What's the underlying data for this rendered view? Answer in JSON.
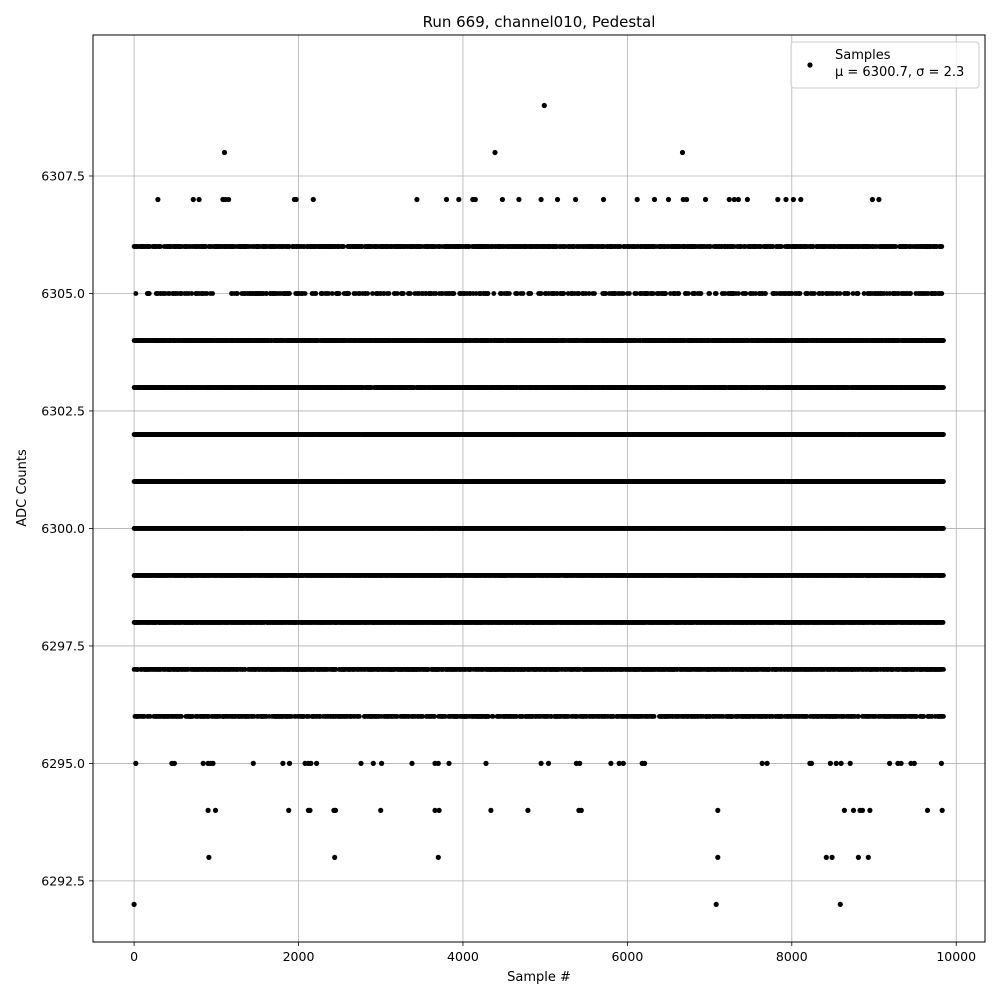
{
  "chart_data": {
    "type": "scatter",
    "title": "Run 669, channel010, Pedestal",
    "xlabel": "Sample #",
    "ylabel": "ADC Counts",
    "xlim": [
      -500,
      10350
    ],
    "ylim": [
      6291.2,
      6310.5
    ],
    "x_ticks": [
      0,
      2000,
      4000,
      6000,
      8000,
      10000
    ],
    "x_tick_labels": [
      "0",
      "2000",
      "4000",
      "6000",
      "8000",
      "10000"
    ],
    "y_ticks": [
      6292.5,
      6295.0,
      6297.5,
      6300.0,
      6302.5,
      6305.0,
      6307.5
    ],
    "y_tick_labels": [
      "6292.5",
      "6295.0",
      "6297.5",
      "6300.0",
      "6302.5",
      "6305.0",
      "6307.5"
    ],
    "grid": true,
    "legend": {
      "placement": "top-right",
      "entries": [
        "Samples",
        "μ = 6300.7, σ = 2.3"
      ]
    },
    "marker_color": "#000000",
    "n_samples": 9850,
    "level_densities": [
      {
        "y": 6300,
        "density": 0.99
      },
      {
        "y": 6301,
        "density": 0.98
      },
      {
        "y": 6302,
        "density": 0.96
      },
      {
        "y": 6299,
        "density": 0.85
      },
      {
        "y": 6298,
        "density": 0.85
      },
      {
        "y": 6303,
        "density": 0.82
      },
      {
        "y": 6304,
        "density": 0.7
      },
      {
        "y": 6297,
        "density": 0.6
      },
      {
        "y": 6306,
        "density": 0.5
      },
      {
        "y": 6296,
        "density": 0.38
      },
      {
        "y": 6305,
        "density": 0.22
      }
    ],
    "points": [
      {
        "x": 0,
        "y": 6292
      },
      {
        "x": 7080,
        "y": 6292
      },
      {
        "x": 8590,
        "y": 6292
      },
      {
        "x": 910,
        "y": 6293
      },
      {
        "x": 2440,
        "y": 6293
      },
      {
        "x": 3700,
        "y": 6293
      },
      {
        "x": 7100,
        "y": 6293
      },
      {
        "x": 8420,
        "y": 6293
      },
      {
        "x": 8490,
        "y": 6293
      },
      {
        "x": 8810,
        "y": 6293
      },
      {
        "x": 8930,
        "y": 6293
      },
      {
        "x": 900,
        "y": 6294
      },
      {
        "x": 990,
        "y": 6294
      },
      {
        "x": 1880,
        "y": 6294
      },
      {
        "x": 2120,
        "y": 6294
      },
      {
        "x": 2140,
        "y": 6294
      },
      {
        "x": 2430,
        "y": 6294
      },
      {
        "x": 2450,
        "y": 6294
      },
      {
        "x": 3000,
        "y": 6294
      },
      {
        "x": 3660,
        "y": 6294
      },
      {
        "x": 3710,
        "y": 6294
      },
      {
        "x": 4340,
        "y": 6294
      },
      {
        "x": 4790,
        "y": 6294
      },
      {
        "x": 5410,
        "y": 6294
      },
      {
        "x": 5440,
        "y": 6294
      },
      {
        "x": 7100,
        "y": 6294
      },
      {
        "x": 8640,
        "y": 6294
      },
      {
        "x": 8750,
        "y": 6294
      },
      {
        "x": 8830,
        "y": 6294
      },
      {
        "x": 8860,
        "y": 6294
      },
      {
        "x": 8950,
        "y": 6294
      },
      {
        "x": 9650,
        "y": 6294
      },
      {
        "x": 9830,
        "y": 6294
      },
      {
        "x": 20,
        "y": 6295
      },
      {
        "x": 460,
        "y": 6295
      },
      {
        "x": 490,
        "y": 6295
      },
      {
        "x": 840,
        "y": 6295
      },
      {
        "x": 900,
        "y": 6295
      },
      {
        "x": 930,
        "y": 6295
      },
      {
        "x": 960,
        "y": 6295
      },
      {
        "x": 1450,
        "y": 6295
      },
      {
        "x": 1810,
        "y": 6295
      },
      {
        "x": 1890,
        "y": 6295
      },
      {
        "x": 2080,
        "y": 6295
      },
      {
        "x": 2120,
        "y": 6295
      },
      {
        "x": 2150,
        "y": 6295
      },
      {
        "x": 2220,
        "y": 6295
      },
      {
        "x": 2760,
        "y": 6295
      },
      {
        "x": 2910,
        "y": 6295
      },
      {
        "x": 3010,
        "y": 6295
      },
      {
        "x": 3380,
        "y": 6295
      },
      {
        "x": 3660,
        "y": 6295
      },
      {
        "x": 3700,
        "y": 6295
      },
      {
        "x": 3830,
        "y": 6295
      },
      {
        "x": 4280,
        "y": 6295
      },
      {
        "x": 4950,
        "y": 6295
      },
      {
        "x": 5040,
        "y": 6295
      },
      {
        "x": 5380,
        "y": 6295
      },
      {
        "x": 5420,
        "y": 6295
      },
      {
        "x": 5800,
        "y": 6295
      },
      {
        "x": 5900,
        "y": 6295
      },
      {
        "x": 5950,
        "y": 6295
      },
      {
        "x": 6180,
        "y": 6295
      },
      {
        "x": 6210,
        "y": 6295
      },
      {
        "x": 7640,
        "y": 6295
      },
      {
        "x": 7700,
        "y": 6295
      },
      {
        "x": 8220,
        "y": 6295
      },
      {
        "x": 8240,
        "y": 6295
      },
      {
        "x": 8470,
        "y": 6295
      },
      {
        "x": 8540,
        "y": 6295
      },
      {
        "x": 8600,
        "y": 6295
      },
      {
        "x": 8710,
        "y": 6295
      },
      {
        "x": 9190,
        "y": 6295
      },
      {
        "x": 9290,
        "y": 6295
      },
      {
        "x": 9330,
        "y": 6295
      },
      {
        "x": 9450,
        "y": 6295
      },
      {
        "x": 9490,
        "y": 6295
      },
      {
        "x": 9820,
        "y": 6295
      },
      {
        "x": 290,
        "y": 6307
      },
      {
        "x": 720,
        "y": 6307
      },
      {
        "x": 790,
        "y": 6307
      },
      {
        "x": 1080,
        "y": 6307
      },
      {
        "x": 1110,
        "y": 6307
      },
      {
        "x": 1150,
        "y": 6307
      },
      {
        "x": 1950,
        "y": 6307
      },
      {
        "x": 1970,
        "y": 6307
      },
      {
        "x": 2180,
        "y": 6307
      },
      {
        "x": 3440,
        "y": 6307
      },
      {
        "x": 3800,
        "y": 6307
      },
      {
        "x": 3950,
        "y": 6307
      },
      {
        "x": 4120,
        "y": 6307
      },
      {
        "x": 4150,
        "y": 6307
      },
      {
        "x": 4480,
        "y": 6307
      },
      {
        "x": 4680,
        "y": 6307
      },
      {
        "x": 4950,
        "y": 6307
      },
      {
        "x": 5150,
        "y": 6307
      },
      {
        "x": 5370,
        "y": 6307
      },
      {
        "x": 5710,
        "y": 6307
      },
      {
        "x": 6120,
        "y": 6307
      },
      {
        "x": 6330,
        "y": 6307
      },
      {
        "x": 6500,
        "y": 6307
      },
      {
        "x": 6680,
        "y": 6307
      },
      {
        "x": 6720,
        "y": 6307
      },
      {
        "x": 6950,
        "y": 6307
      },
      {
        "x": 7240,
        "y": 6307
      },
      {
        "x": 7300,
        "y": 6307
      },
      {
        "x": 7350,
        "y": 6307
      },
      {
        "x": 7460,
        "y": 6307
      },
      {
        "x": 7830,
        "y": 6307
      },
      {
        "x": 7930,
        "y": 6307
      },
      {
        "x": 8020,
        "y": 6307
      },
      {
        "x": 8110,
        "y": 6307
      },
      {
        "x": 8980,
        "y": 6307
      },
      {
        "x": 9060,
        "y": 6307
      },
      {
        "x": 1100,
        "y": 6308
      },
      {
        "x": 4390,
        "y": 6308
      },
      {
        "x": 6670,
        "y": 6308
      },
      {
        "x": 4990,
        "y": 6309
      }
    ]
  }
}
